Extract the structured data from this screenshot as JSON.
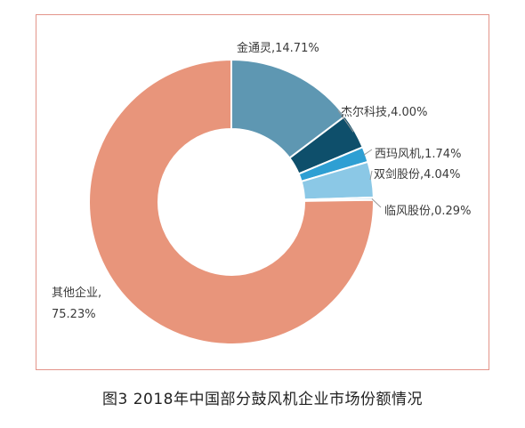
{
  "caption": "图3 2018年中国部分鼓风机企业市场份额情况",
  "chart_data": {
    "type": "pie",
    "style": "donut",
    "title": "",
    "border_color": "#e3948a",
    "slices": [
      {
        "name": "金通灵",
        "value": 14.71,
        "label": "金通灵,14.71%",
        "color": "#5e97b2"
      },
      {
        "name": "杰尔科技",
        "value": 4.0,
        "label": "杰尔科技,4.00%",
        "color": "#0e4f6b"
      },
      {
        "name": "西玛风机",
        "value": 1.74,
        "label": "西玛风机,1.74%",
        "color": "#2e9fd3"
      },
      {
        "name": "双剑股份",
        "value": 4.04,
        "label": "双剑股份,4.04%",
        "color": "#8bc8e6"
      },
      {
        "name": "临风股份",
        "value": 0.29,
        "label": "临风股份,0.29%",
        "color": "#cfe6f3"
      },
      {
        "name": "其他企业",
        "value": 75.23,
        "label_line1": "其他企业,",
        "label_line2": "75.23%",
        "color": "#e8957b"
      }
    ]
  }
}
